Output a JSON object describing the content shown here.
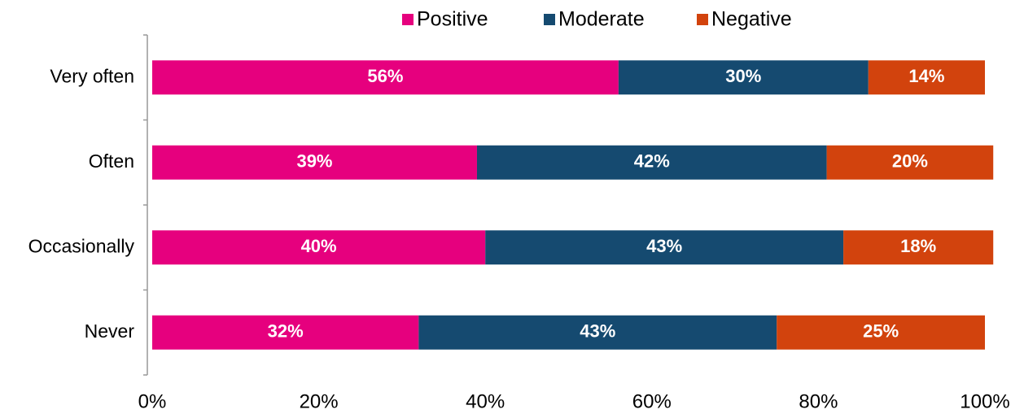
{
  "chart_data": {
    "type": "bar",
    "orientation": "horizontal",
    "stacked": true,
    "categories": [
      "Very often",
      "Often",
      "Occasionally",
      "Never"
    ],
    "series": [
      {
        "name": "Positive",
        "color": "#e6007e",
        "values": [
          56,
          39,
          40,
          32
        ],
        "value_labels": [
          "56%",
          "39%",
          "40%",
          "32%"
        ]
      },
      {
        "name": "Moderate",
        "color": "#154a70",
        "values": [
          30,
          42,
          43,
          43
        ],
        "value_labels": [
          "30%",
          "42%",
          "43%",
          "43%"
        ]
      },
      {
        "name": "Negative",
        "color": "#d2430d",
        "values": [
          14,
          20,
          18,
          25
        ],
        "value_labels": [
          "14%",
          "20%",
          "18%",
          "25%"
        ]
      }
    ],
    "xlim": [
      0,
      100
    ],
    "xticks": [
      {
        "value": 0,
        "label": "0%"
      },
      {
        "value": 20,
        "label": "20%"
      },
      {
        "value": 40,
        "label": "40%"
      },
      {
        "value": 60,
        "label": "60%"
      },
      {
        "value": 80,
        "label": "80%"
      },
      {
        "value": 100,
        "label": "100%"
      }
    ],
    "legend": "top",
    "grid": false
  }
}
